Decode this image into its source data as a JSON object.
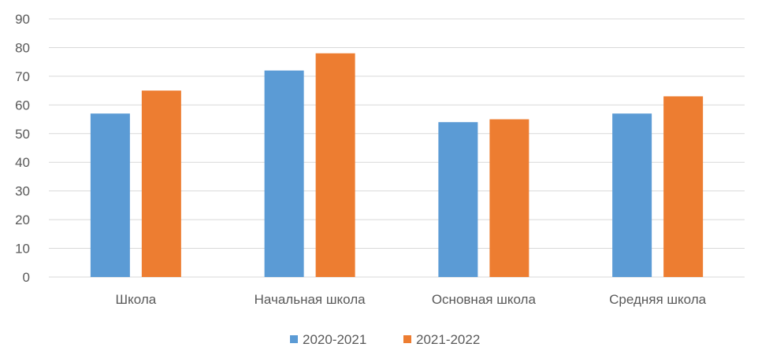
{
  "chart_data": {
    "type": "bar",
    "title": "",
    "xlabel": "",
    "ylabel": "",
    "categories": [
      "Школа",
      "Начальная школа",
      "Основная школа",
      "Средняя школа"
    ],
    "series": [
      {
        "name": "2020-2021",
        "color": "#5B9BD5",
        "values": [
          57,
          72,
          54,
          57
        ]
      },
      {
        "name": "2021-2022",
        "color": "#ED7D31",
        "values": [
          65,
          78,
          55,
          63
        ]
      }
    ],
    "ylim": [
      0,
      90
    ],
    "yticks": [
      0,
      10,
      20,
      30,
      40,
      50,
      60,
      70,
      80,
      90
    ],
    "grid": true,
    "legend_position": "bottom",
    "gridline_color": "#D9D9D9",
    "text_color": "#595959"
  }
}
